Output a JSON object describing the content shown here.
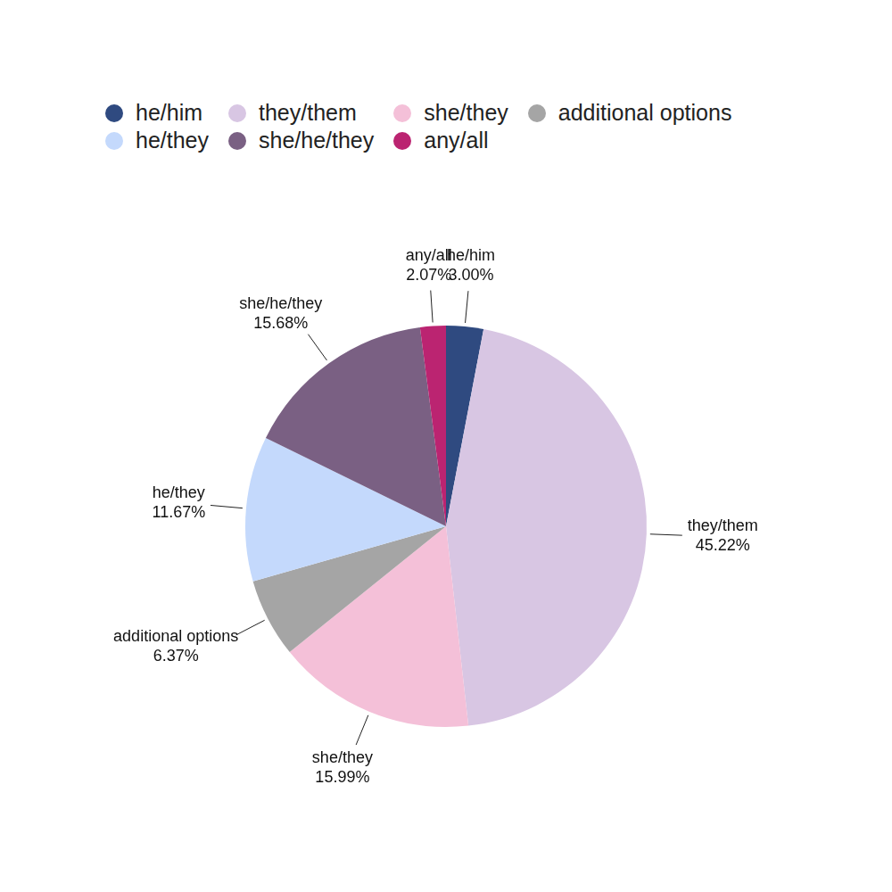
{
  "chart_data": {
    "type": "pie",
    "categories": [
      "he/him",
      "they/them",
      "she/they",
      "additional options",
      "he/they",
      "she/he/they",
      "any/all"
    ],
    "values": [
      3.0,
      45.22,
      15.99,
      6.37,
      11.67,
      15.68,
      2.07
    ],
    "value_labels": [
      "3.00%",
      "45.22%",
      "15.99%",
      "6.37%",
      "11.67%",
      "15.68%",
      "2.07%"
    ],
    "colors": [
      "#2f4a80",
      "#d8c6e3",
      "#f4c0d8",
      "#a5a5a5",
      "#c4d9fc",
      "#7a6083",
      "#bb2471"
    ],
    "data_labels": true,
    "legend": "top"
  }
}
